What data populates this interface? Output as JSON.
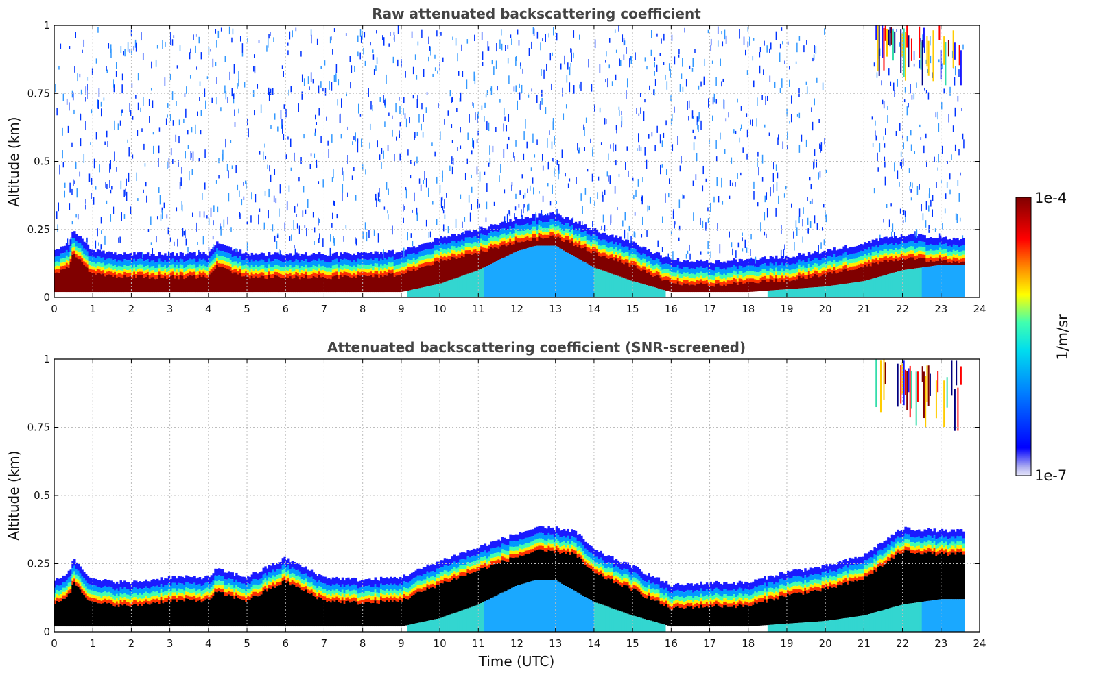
{
  "chart_data": [
    {
      "type": "heatmap",
      "title": "Raw attenuated backscattering coefficient",
      "xlabel": "",
      "ylabel": "Altitude (km)",
      "xlim": [
        0,
        24
      ],
      "ylim": [
        0,
        1
      ],
      "xticks": [
        "0",
        "1",
        "2",
        "3",
        "4",
        "5",
        "6",
        "7",
        "8",
        "9",
        "10",
        "11",
        "12",
        "13",
        "14",
        "15",
        "16",
        "17",
        "18",
        "19",
        "20",
        "21",
        "22",
        "23",
        "24"
      ],
      "yticks": [
        "0",
        "0.25",
        "0.5",
        "0.75",
        "1"
      ],
      "grid": true,
      "data_end_hour": 23.6,
      "screened": false,
      "layer": {
        "time": [
          0,
          0.4,
          0.5,
          1,
          2,
          3,
          4,
          4.2,
          5,
          6,
          7,
          8,
          9,
          10,
          11,
          12,
          12.5,
          13,
          13.5,
          14,
          15,
          16,
          17,
          18,
          19,
          20,
          21,
          22,
          23,
          23.6
        ],
        "top_km": [
          0.17,
          0.2,
          0.25,
          0.17,
          0.16,
          0.16,
          0.16,
          0.2,
          0.16,
          0.16,
          0.16,
          0.16,
          0.17,
          0.22,
          0.25,
          0.29,
          0.3,
          0.31,
          0.28,
          0.25,
          0.2,
          0.14,
          0.13,
          0.14,
          0.15,
          0.17,
          0.2,
          0.23,
          0.22,
          0.21
        ],
        "aerosol_base_km": [
          0,
          0,
          0,
          0,
          0,
          0,
          0,
          0,
          0,
          0,
          0,
          0,
          0,
          0.03,
          0.08,
          0.15,
          0.17,
          0.17,
          0.13,
          0.09,
          0.04,
          0,
          0,
          0,
          0.01,
          0.02,
          0.04,
          0.08,
          0.1,
          0.1
        ]
      },
      "noise_above_layer": true,
      "high_cloud": {
        "time_start": 21.3,
        "time_end": 23.5,
        "alt_top_km": 1.0,
        "alt_bottom_km": 0.78
      }
    },
    {
      "type": "heatmap",
      "title": "Attenuated backscattering coefficient (SNR-screened)",
      "xlabel": "Time (UTC)",
      "ylabel": "Altitude (km)",
      "xlim": [
        0,
        24
      ],
      "ylim": [
        0,
        1
      ],
      "xticks": [
        "0",
        "1",
        "2",
        "3",
        "4",
        "5",
        "6",
        "7",
        "8",
        "9",
        "10",
        "11",
        "12",
        "13",
        "14",
        "15",
        "16",
        "17",
        "18",
        "19",
        "20",
        "21",
        "22",
        "23",
        "24"
      ],
      "yticks": [
        "0",
        "0.25",
        "0.5",
        "0.75",
        "1"
      ],
      "grid": true,
      "data_end_hour": 23.6,
      "screened": true,
      "layer": {
        "time": [
          0,
          0.4,
          0.5,
          1,
          2,
          3,
          4,
          4.2,
          5,
          6,
          7,
          8,
          9,
          10,
          11,
          12,
          12.5,
          13,
          13.5,
          14,
          15,
          16,
          17,
          18,
          19,
          20,
          21,
          22,
          23,
          23.6
        ],
        "top_km": [
          0.19,
          0.22,
          0.27,
          0.19,
          0.18,
          0.2,
          0.2,
          0.23,
          0.2,
          0.27,
          0.2,
          0.19,
          0.2,
          0.26,
          0.31,
          0.36,
          0.38,
          0.38,
          0.37,
          0.3,
          0.24,
          0.17,
          0.18,
          0.18,
          0.22,
          0.24,
          0.28,
          0.38,
          0.37,
          0.37
        ],
        "aerosol_base_km": [
          0,
          0,
          0,
          0,
          0,
          0,
          0,
          0,
          0,
          0,
          0,
          0,
          0,
          0.03,
          0.08,
          0.15,
          0.17,
          0.17,
          0.13,
          0.09,
          0.04,
          0,
          0,
          0,
          0.01,
          0.02,
          0.04,
          0.08,
          0.1,
          0.1
        ]
      },
      "noise_above_layer": false,
      "high_cloud": {
        "time_start": 21.3,
        "time_end": 23.5,
        "alt_top_km": 1.0,
        "alt_bottom_km": 0.72
      }
    }
  ],
  "colorbar": {
    "max_label": "1e-4",
    "min_label": "1e-7",
    "unit_label": "1/m/sr",
    "colormap": [
      "#e6e6fa",
      "#0000ff",
      "#00ccff",
      "#40ffb0",
      "#ffff00",
      "#ff6600",
      "#ff0000",
      "#800000"
    ]
  }
}
